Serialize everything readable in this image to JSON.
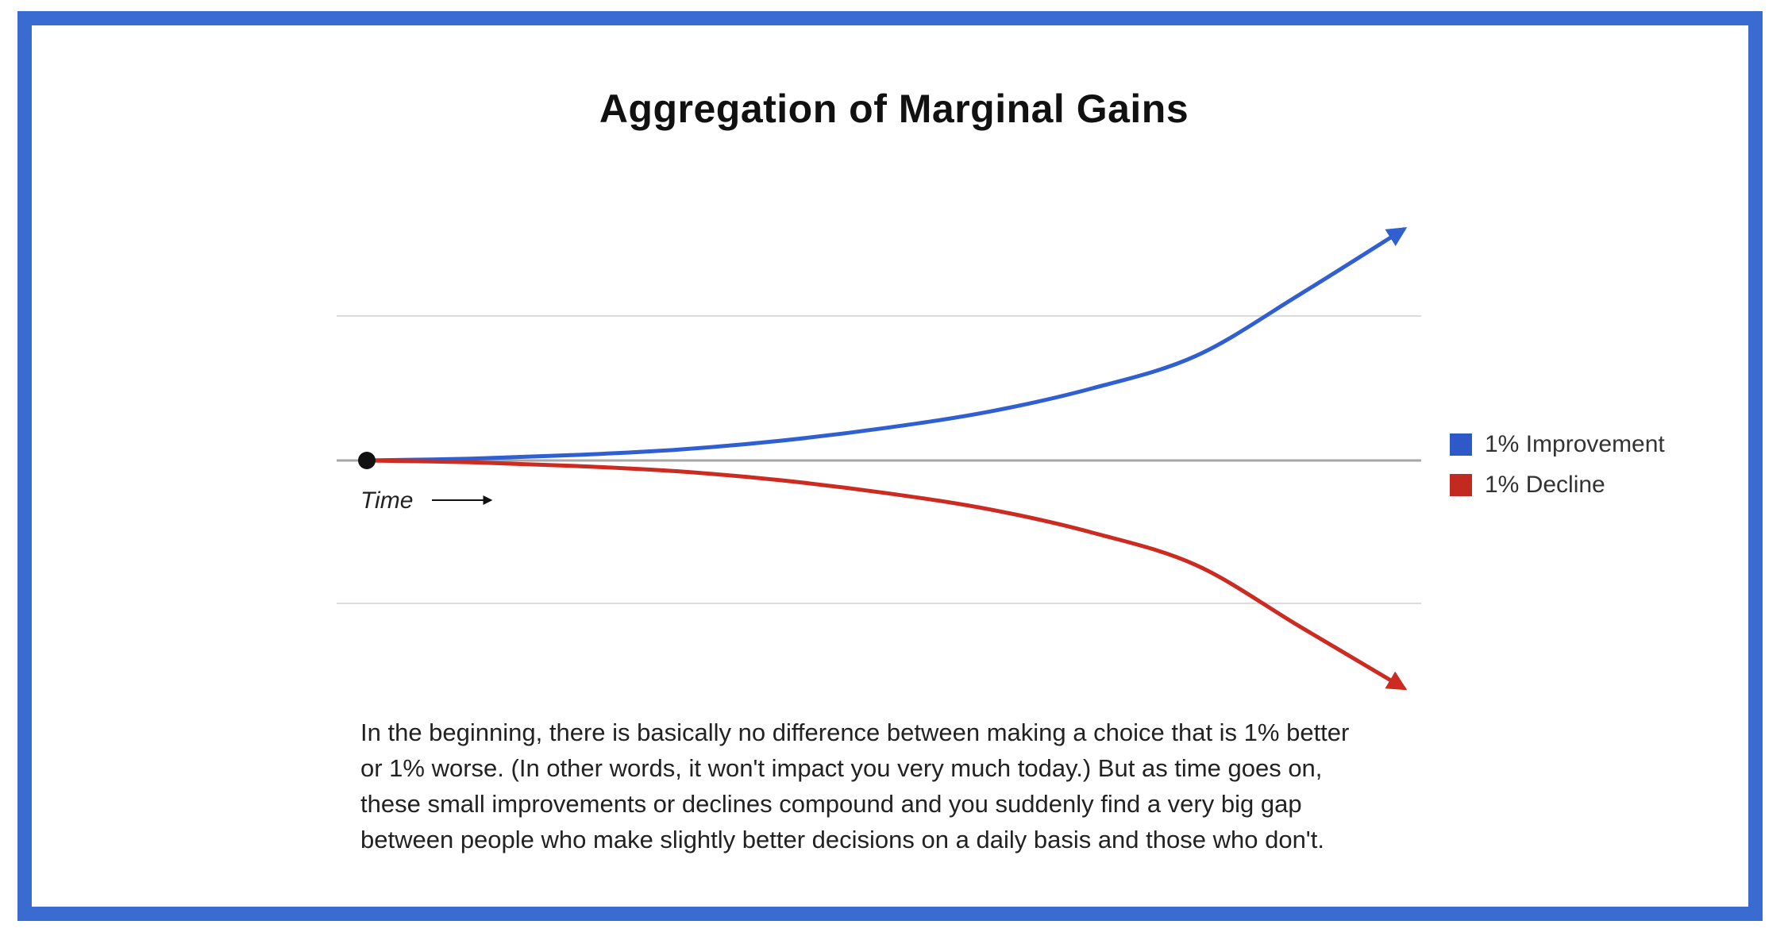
{
  "chart_data": {
    "type": "line",
    "title": "Aggregation of Marginal Gains",
    "xlabel": "Time",
    "ylabel": "",
    "xlim": [
      0,
      1
    ],
    "ylim": [
      -1,
      1
    ],
    "grid": true,
    "legend_position": "right",
    "x": [
      0,
      0.1,
      0.2,
      0.3,
      0.4,
      0.5,
      0.6,
      0.7,
      0.8,
      0.9,
      1.0
    ],
    "series": [
      {
        "name": "1% Improvement",
        "color": "#2f5fd0",
        "values": [
          0,
          0.01,
          0.03,
          0.06,
          0.11,
          0.18,
          0.27,
          0.4,
          0.58,
          0.92,
          1.28
        ]
      },
      {
        "name": "1% Decline",
        "color": "#cc2b21",
        "values": [
          0,
          -0.01,
          -0.03,
          -0.06,
          -0.11,
          -0.18,
          -0.27,
          -0.4,
          -0.58,
          -0.92,
          -1.26
        ]
      }
    ]
  },
  "caption": {
    "lines": [
      "In the beginning, there is basically no difference between making a choice that is 1% better",
      "or 1% worse. (In other words, it won't impact you very much today.) But as time goes on,",
      "these small improvements or declines compound and you suddenly find a very big gap",
      "between people who make slightly better decisions on a daily basis and those who don't."
    ]
  },
  "colors": {
    "frame": "#3a6bd0",
    "grid": "#dcdcdc",
    "baseline": "#a6a6a6",
    "text": "#222222"
  }
}
